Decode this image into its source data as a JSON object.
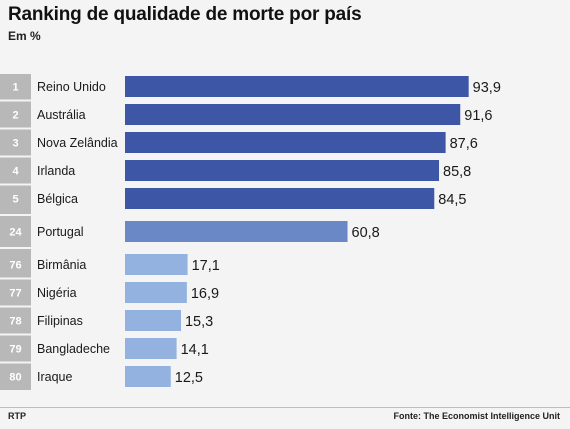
{
  "header": {
    "title": "Ranking de qualidade de morte por país",
    "subtitle": "Em %"
  },
  "footer": {
    "source_left": "RTP",
    "source_right": "Fonte: The Economist Intelligence Unit"
  },
  "colors": {
    "bar_top": "#3d56a6",
    "bar_portugal": "#6a88c6",
    "bar_bottom": "#93b2e0",
    "rank_band": "#b8b8b8"
  },
  "chart_data": {
    "type": "bar",
    "orientation": "horizontal",
    "title": "Ranking de qualidade de morte por país",
    "subtitle": "Em %",
    "xlim": [
      0,
      100
    ],
    "grid": false,
    "rows": [
      {
        "rank": "1",
        "country": "Reino Unido",
        "value": 93.9,
        "label": "93,9",
        "group": "top"
      },
      {
        "rank": "2",
        "country": "Austrália",
        "value": 91.6,
        "label": "91,6",
        "group": "top"
      },
      {
        "rank": "3",
        "country": "Nova Zelândia",
        "value": 87.6,
        "label": "87,6",
        "group": "top"
      },
      {
        "rank": "4",
        "country": "Irlanda",
        "value": 85.8,
        "label": "85,8",
        "group": "top"
      },
      {
        "rank": "5",
        "country": "Bélgica",
        "value": 84.5,
        "label": "84,5",
        "group": "top"
      },
      {
        "rank": "24",
        "country": "Portugal",
        "value": 60.8,
        "label": "60,8",
        "group": "portugal"
      },
      {
        "rank": "76",
        "country": "Birmânia",
        "value": 17.1,
        "label": "17,1",
        "group": "bottom"
      },
      {
        "rank": "77",
        "country": "Nigéria",
        "value": 16.9,
        "label": "16,9",
        "group": "bottom"
      },
      {
        "rank": "78",
        "country": "Filipinas",
        "value": 15.3,
        "label": "15,3",
        "group": "bottom"
      },
      {
        "rank": "79",
        "country": "Bangladeche",
        "value": 14.1,
        "label": "14,1",
        "group": "bottom"
      },
      {
        "rank": "80",
        "country": "Iraque",
        "value": 12.5,
        "label": "12,5",
        "group": "bottom"
      }
    ]
  }
}
